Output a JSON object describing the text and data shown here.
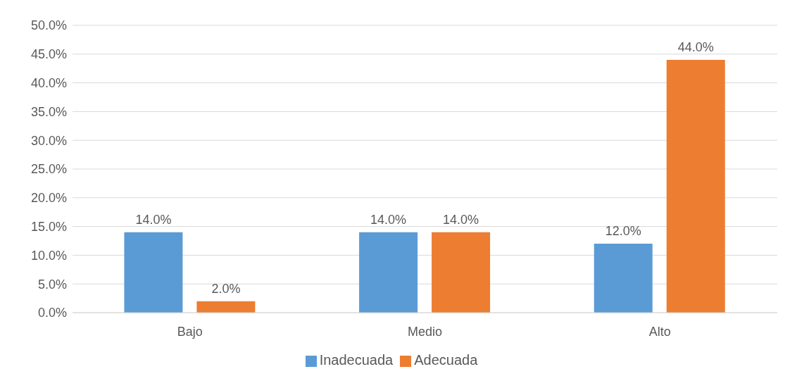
{
  "chart_data": {
    "type": "bar",
    "categories": [
      "Bajo",
      "Medio",
      "Alto"
    ],
    "series": [
      {
        "name": "Inadecuada",
        "color": "#5b9bd5",
        "values": [
          14,
          14,
          12
        ],
        "value_labels": [
          "14.0%",
          "14.0%",
          "12.0%"
        ]
      },
      {
        "name": "Adecuada",
        "color": "#ed7d31",
        "values": [
          2,
          14,
          44
        ],
        "value_labels": [
          "2.0%",
          "14.0%",
          "44.0%"
        ]
      }
    ],
    "ylim": [
      0,
      50
    ],
    "yticks": [
      {
        "value": 0,
        "label": "0.0%"
      },
      {
        "value": 5,
        "label": "5.0%"
      },
      {
        "value": 10,
        "label": "10.0%"
      },
      {
        "value": 15,
        "label": "15.0%"
      },
      {
        "value": 20,
        "label": "20.0%"
      },
      {
        "value": 25,
        "label": "25.0%"
      },
      {
        "value": 30,
        "label": "30.0%"
      },
      {
        "value": 35,
        "label": "35.0%"
      },
      {
        "value": 40,
        "label": "40.0%"
      },
      {
        "value": 45,
        "label": "45.0%"
      },
      {
        "value": 50,
        "label": "50.0%"
      }
    ],
    "grid": "y",
    "legend": "bottom"
  }
}
